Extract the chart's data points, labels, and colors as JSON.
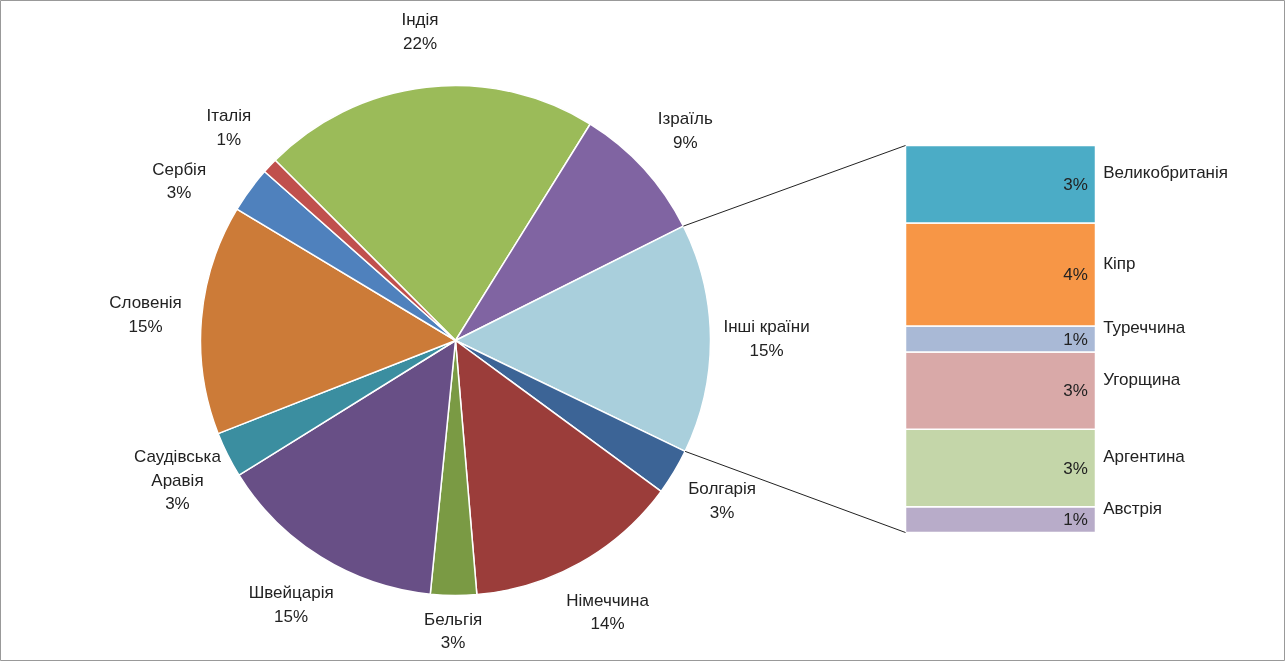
{
  "chart_data": [
    {
      "type": "pie",
      "categories": [
        "Індія",
        "Ізраїль",
        "Інші країни",
        "Болгарія",
        "Німеччина",
        "Бельгія",
        "Швейцарія",
        "Саудівська Аравія",
        "Словенія",
        "Сербія",
        "Італія"
      ],
      "values": [
        22,
        9,
        15,
        3,
        14,
        3,
        15,
        3,
        15,
        3,
        1
      ],
      "value_labels": [
        "22%",
        "9%",
        "15%",
        "3%",
        "14%",
        "3%",
        "15%",
        "3%",
        "15%",
        "3%",
        "1%"
      ],
      "colors": [
        "#9bbb59",
        "#8064a2",
        "#a9cfdc",
        "#3c6496",
        "#9b3d3a",
        "#7a9a44",
        "#684f86",
        "#3b8ea0",
        "#cc7b38",
        "#4f81bd",
        "#c0504d"
      ]
    },
    {
      "type": "bar",
      "stacked": true,
      "categories": [
        null
      ],
      "series": [
        {
          "name": "Австрія",
          "color": "#b8acc9",
          "values": [
            1
          ],
          "value_labels": [
            "1%"
          ]
        },
        {
          "name": "Аргентина",
          "color": "#c4d6a9",
          "values": [
            3
          ],
          "value_labels": [
            "3%"
          ]
        },
        {
          "name": "Угорщина",
          "color": "#d9a9a8",
          "values": [
            3
          ],
          "value_labels": [
            "3%"
          ]
        },
        {
          "name": "Туреччина",
          "color": "#a9b9d6",
          "values": [
            1
          ],
          "value_labels": [
            "1%"
          ]
        },
        {
          "name": "Кіпр",
          "color": "#f79646",
          "values": [
            4
          ],
          "value_labels": [
            "4%"
          ]
        },
        {
          "name": "Великобританія",
          "color": "#4bacc6",
          "values": [
            3
          ],
          "value_labels": [
            "3%"
          ]
        }
      ]
    }
  ]
}
